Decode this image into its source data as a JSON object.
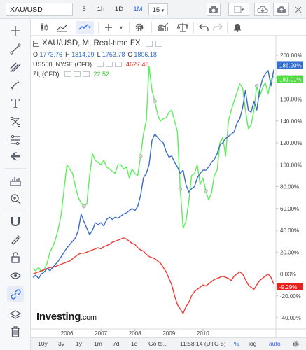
{
  "topbar": {
    "symbol": "XAU/USD",
    "timeframes": [
      "5",
      "1h",
      "1D",
      "1M",
      "15"
    ],
    "active_timeframe": "1M"
  },
  "legend": {
    "main_title": "XAU/USD, M, Real-time FX",
    "ohlc": [
      {
        "k": "O",
        "v": "1773.76"
      },
      {
        "k": "H",
        "v": "1814.29"
      },
      {
        "k": "L",
        "v": "1753.78"
      },
      {
        "k": "C",
        "v": "1806.18"
      }
    ],
    "compare1_name": "US500, NYSE (CFD)",
    "compare1_value": "4627.40",
    "compare2_name": "ZI, (CFD)",
    "compare2_value": "22.52"
  },
  "logo": {
    "main": "Investing",
    "suffix": ".com"
  },
  "bottombar": {
    "ranges": [
      "10y",
      "3y",
      "1y",
      "1m",
      "7d",
      "1d",
      "Go to..."
    ],
    "time": "11:58:14 (UTC-5)",
    "percent": "%",
    "log": "log",
    "auto": "auto"
  },
  "colors": {
    "xau": "#3d6bc4",
    "us500": "#ef3b36",
    "zi": "#5bee5b",
    "xau_badge": "#2f6fd3",
    "us500_badge": "#e8221b",
    "zi_badge": "#4cdc3c"
  },
  "chart_data": {
    "type": "line",
    "x_axis_ticks": [
      "2006",
      "2007",
      "2008",
      "2009",
      "2010"
    ],
    "y_axis_ticks": [
      "200.00%",
      "180.00%",
      "160.00%",
      "140.00%",
      "120.00%",
      "100.00%",
      "80.00%",
      "60.00%",
      "40.00%",
      "20.00%",
      "0.00%",
      "-20.00%",
      "-40.00%"
    ],
    "ylim": [
      -40,
      200
    ],
    "grid": false,
    "x_start": "2005-01",
    "x_step": "1 month",
    "series": [
      {
        "name": "XAU/USD",
        "last_label": "186.90%",
        "values": [
          -3,
          -1,
          -4,
          0,
          2,
          5,
          3,
          6,
          9,
          12,
          16,
          20,
          24,
          27,
          30,
          33,
          40,
          55,
          48,
          42,
          36,
          40,
          47,
          45,
          47,
          44,
          50,
          52,
          50,
          52,
          51,
          53,
          55,
          56,
          58,
          60,
          58,
          62,
          72,
          88,
          92,
          100,
          122,
          128,
          125,
          122,
          120,
          112,
          107,
          108,
          102,
          98,
          92,
          95,
          82,
          75,
          78,
          80,
          88,
          92,
          95,
          95,
          98,
          102,
          105,
          110,
          118,
          120,
          124,
          126,
          128,
          130,
          138,
          142,
          152,
          168,
          150,
          148,
          158,
          150,
          168,
          178,
          183,
          186,
          172,
          186.9
        ]
      },
      {
        "name": "ZI, (CFD)",
        "last_label": "181.01%",
        "values": [
          5,
          3,
          6,
          2,
          4,
          10,
          20,
          25,
          32,
          42,
          55,
          78,
          100,
          96,
          92,
          80,
          70,
          65,
          62,
          64,
          90,
          110,
          104,
          102,
          100,
          104,
          98,
          96,
          94,
          92,
          100,
          100,
          96,
          98,
          88,
          96,
          92,
          90,
          108,
          128,
          140,
          190,
          168,
          158,
          146,
          140,
          142,
          143,
          148,
          150,
          140,
          130,
          78,
          42,
          48,
          66,
          90,
          92,
          100,
          82,
          88,
          76,
          68,
          74,
          90,
          95,
          120,
          125,
          108,
          140,
          150,
          158,
          166,
          174,
          170,
          150,
          133,
          136,
          150,
          172,
          162,
          170,
          175,
          165,
          178,
          181
        ]
      },
      {
        "name": "US500, NYSE (CFD)",
        "last_label": "-9.29%",
        "values": [
          0,
          1,
          2,
          3,
          4,
          5,
          6,
          6,
          7,
          8,
          9,
          10,
          11,
          12,
          14,
          16,
          18,
          19,
          19,
          20,
          21,
          22,
          23,
          24,
          23,
          25,
          26,
          27,
          29,
          30,
          31,
          32,
          33,
          32,
          30,
          28,
          27,
          24,
          22,
          21,
          18,
          16,
          15,
          14,
          12,
          10,
          6,
          2,
          -4,
          -10,
          -20,
          -28,
          -32,
          -36,
          -30,
          -26,
          -20,
          -16,
          -14,
          -12,
          -10,
          -11,
          -9,
          -7,
          -5,
          -4,
          -3,
          -2,
          -3,
          -4,
          -6,
          -2,
          0,
          2,
          0,
          -5,
          -10,
          -12,
          -14,
          -10,
          -6,
          -4,
          -2,
          0,
          -3,
          -9.29
        ]
      }
    ]
  }
}
